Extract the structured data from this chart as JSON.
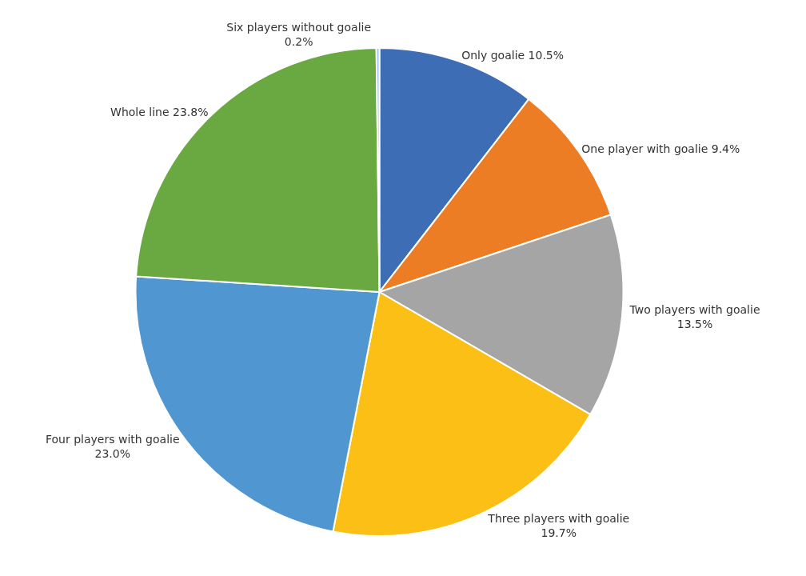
{
  "chart_data": {
    "type": "pie",
    "categories": [
      "Only goalie",
      "One player with goalie",
      "Two players with goalie",
      "Three players with goalie",
      "Four players with goalie",
      "Whole line",
      "Six players without goalie"
    ],
    "values": [
      10.5,
      9.4,
      13.5,
      19.7,
      23.0,
      23.8,
      0.2
    ],
    "value_labels": [
      "10.5%",
      "9.4%",
      "13.5%",
      "19.7%",
      "23.0%",
      "23.8%",
      "0.2%"
    ],
    "colors": [
      "#3d6db5",
      "#ed7d24",
      "#a5a5a5",
      "#fbbf15",
      "#5097d2",
      "#6aa842",
      "#9dc3e6"
    ]
  }
}
